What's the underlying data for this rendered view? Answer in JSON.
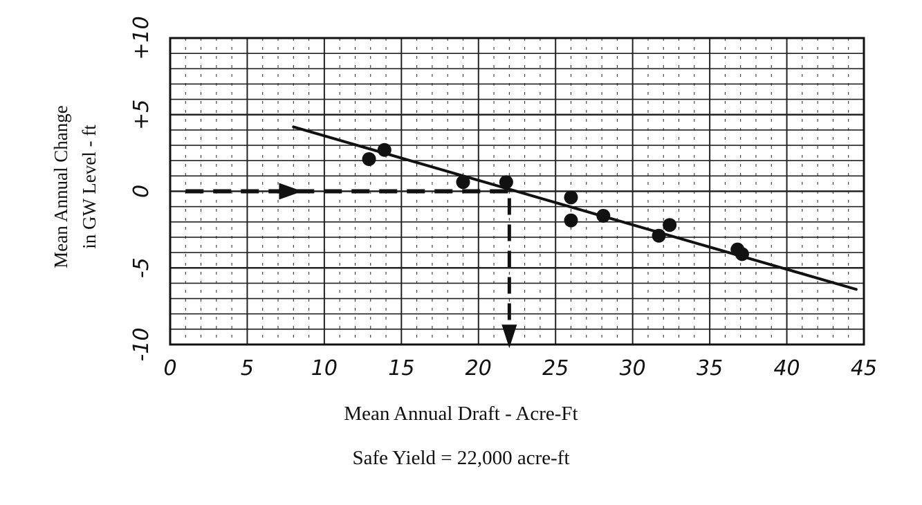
{
  "chart_data": {
    "type": "scatter",
    "xlabel": "Mean Annual Draft - Acre-Ft",
    "ylabel_lines": [
      "Mean Annual Change",
      "in GW Level - ft"
    ],
    "caption": "Safe Yield = 22,000 acre-ft",
    "x_ticks": [
      "0",
      "5",
      "10",
      "15",
      "20",
      "25",
      "30",
      "35",
      "40",
      "45"
    ],
    "y_ticks": [
      "+10",
      "+5",
      "0",
      "-5",
      "-10"
    ],
    "xlim": [
      0,
      45
    ],
    "ylim": [
      -10,
      10
    ],
    "grid": true,
    "points": [
      {
        "x": 12.9,
        "y": 2.1
      },
      {
        "x": 13.9,
        "y": 2.7
      },
      {
        "x": 19.0,
        "y": 0.6
      },
      {
        "x": 21.8,
        "y": 0.6
      },
      {
        "x": 26.0,
        "y": -0.4
      },
      {
        "x": 26.0,
        "y": -1.9
      },
      {
        "x": 28.1,
        "y": -1.6
      },
      {
        "x": 31.7,
        "y": -2.9
      },
      {
        "x": 32.4,
        "y": -2.2
      },
      {
        "x": 36.8,
        "y": -3.8
      },
      {
        "x": 37.1,
        "y": -4.1
      }
    ],
    "trend_line": {
      "x": [
        8,
        44.5
      ],
      "y": [
        4.2,
        -6.4
      ]
    },
    "safe_yield_guide": {
      "x_start": 1,
      "x_at": 22,
      "y_level": 0,
      "y_end": -10
    }
  }
}
